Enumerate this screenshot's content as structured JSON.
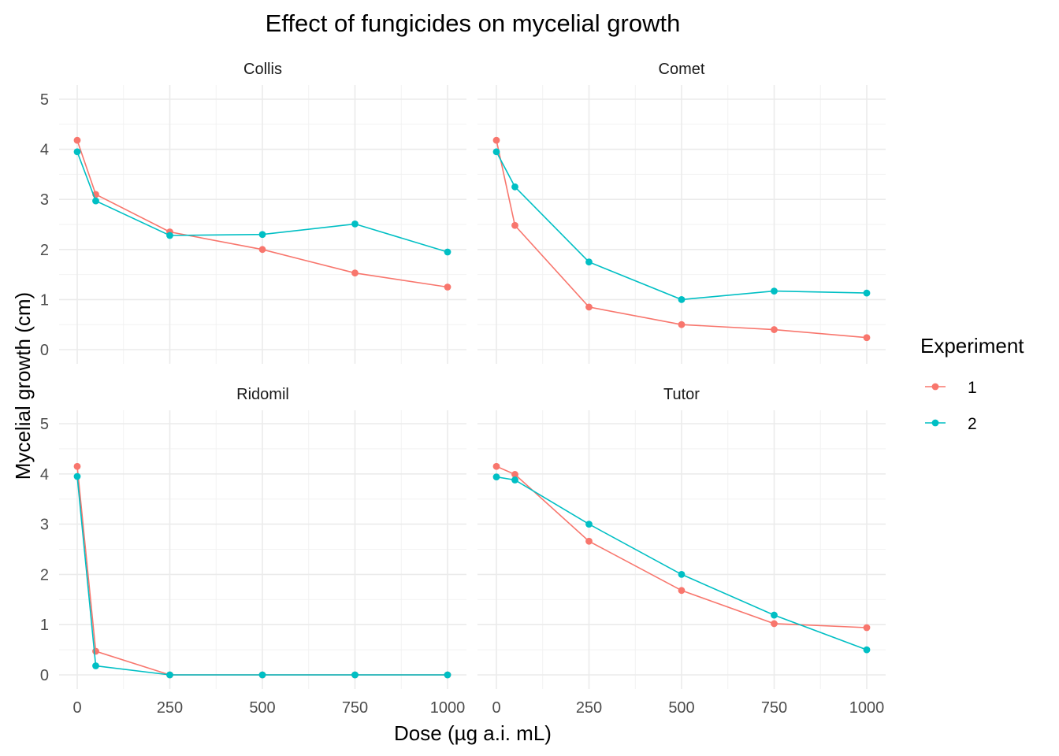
{
  "chart_data": {
    "type": "line",
    "title": "Effect of fungicides on mycelial growth",
    "xlabel": "Dose (µg a.i. mL)",
    "ylabel": "Mycelial growth (cm)",
    "xlim": [
      0,
      1000
    ],
    "ylim": [
      0,
      5
    ],
    "x_ticks": [
      0,
      250,
      500,
      750,
      1000
    ],
    "y_ticks": [
      0,
      1,
      2,
      3,
      4,
      5
    ],
    "grid": true,
    "legend": {
      "title": "Experiment",
      "placement": "right",
      "entries": [
        {
          "label": "1",
          "color": "#F8766D"
        },
        {
          "label": "2",
          "color": "#00BFC4"
        }
      ]
    },
    "panels": [
      {
        "name": "Collis",
        "series": [
          {
            "name": "1",
            "color": "#F8766D",
            "x": [
              0,
              50,
              250,
              500,
              750,
              1000
            ],
            "y": [
              4.18,
              3.1,
              2.35,
              2.0,
              1.53,
              1.25
            ]
          },
          {
            "name": "2",
            "color": "#00BFC4",
            "x": [
              0,
              50,
              250,
              500,
              750,
              1000
            ],
            "y": [
              3.95,
              2.97,
              2.28,
              2.3,
              2.51,
              1.95
            ]
          }
        ]
      },
      {
        "name": "Comet",
        "series": [
          {
            "name": "1",
            "color": "#F8766D",
            "x": [
              0,
              50,
              250,
              500,
              750,
              1000
            ],
            "y": [
              4.18,
              2.48,
              0.85,
              0.5,
              0.4,
              0.24
            ]
          },
          {
            "name": "2",
            "color": "#00BFC4",
            "x": [
              0,
              50,
              250,
              500,
              750,
              1000
            ],
            "y": [
              3.95,
              3.25,
              1.75,
              1.0,
              1.17,
              1.13
            ]
          }
        ]
      },
      {
        "name": "Ridomil",
        "series": [
          {
            "name": "1",
            "color": "#F8766D",
            "x": [
              0,
              50,
              250,
              500,
              750,
              1000
            ],
            "y": [
              4.15,
              0.47,
              0.0,
              0.0,
              0.0,
              0.0
            ]
          },
          {
            "name": "2",
            "color": "#00BFC4",
            "x": [
              0,
              50,
              250,
              500,
              750,
              1000
            ],
            "y": [
              3.95,
              0.18,
              0.0,
              0.0,
              0.0,
              0.0
            ]
          }
        ]
      },
      {
        "name": "Tutor",
        "series": [
          {
            "name": "1",
            "color": "#F8766D",
            "x": [
              0,
              50,
              250,
              500,
              750,
              1000
            ],
            "y": [
              4.15,
              3.99,
              2.66,
              1.68,
              1.02,
              0.94
            ]
          },
          {
            "name": "2",
            "color": "#00BFC4",
            "x": [
              0,
              50,
              250,
              500,
              750,
              1000
            ],
            "y": [
              3.94,
              3.88,
              3.0,
              2.0,
              1.19,
              0.5
            ]
          }
        ]
      }
    ]
  }
}
